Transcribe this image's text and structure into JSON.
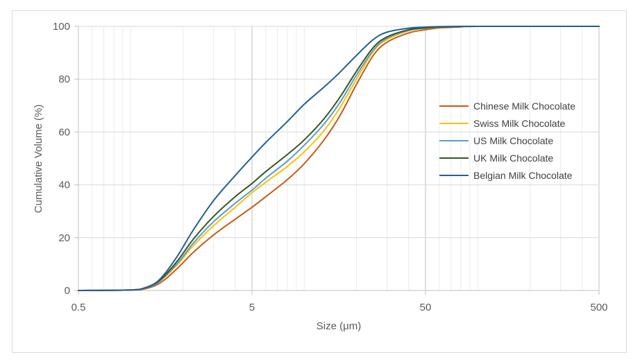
{
  "chart_data": {
    "type": "line",
    "title": "",
    "xlabel": "Size (μm)",
    "ylabel": "Cumulative Volume (%)",
    "x_scale": "log",
    "xlim": [
      0.5,
      500
    ],
    "ylim": [
      0,
      100
    ],
    "x_ticks": [
      "0.5",
      "5",
      "50",
      "500"
    ],
    "y_ticks": [
      "0",
      "20",
      "40",
      "60",
      "80",
      "100"
    ],
    "grid": true,
    "legend_position": "right",
    "series": [
      {
        "name": "Chinese Milk Chocolate",
        "color": "#c55a11",
        "x": [
          0.5,
          1.0,
          1.2,
          1.4,
          1.6,
          1.9,
          2.3,
          3.0,
          4.0,
          5.0,
          6.0,
          8.0,
          10.0,
          13.0,
          16.0,
          20.0,
          25.0,
          30.0,
          40.0,
          50.0,
          60.0,
          80.0,
          100.0,
          500.0
        ],
        "y": [
          0,
          0.2,
          0.6,
          2.0,
          4.5,
          9.0,
          14.5,
          21.0,
          27.0,
          31.5,
          35.5,
          42.0,
          48.0,
          57.0,
          66.0,
          78.0,
          89.0,
          94.0,
          97.5,
          98.7,
          99.4,
          99.8,
          100,
          100
        ]
      },
      {
        "name": "Swiss Milk Chocolate",
        "color": "#ffc000",
        "x": [
          0.5,
          1.0,
          1.2,
          1.4,
          1.6,
          1.9,
          2.3,
          3.0,
          4.0,
          5.0,
          6.0,
          8.0,
          10.0,
          13.0,
          16.0,
          20.0,
          25.0,
          30.0,
          40.0,
          50.0,
          60.0,
          80.0,
          100.0,
          500.0
        ],
        "y": [
          0,
          0.2,
          0.8,
          2.5,
          5.5,
          10.5,
          17.0,
          24.5,
          31.5,
          37.0,
          41.0,
          47.0,
          52.5,
          60.5,
          69.0,
          80.0,
          90.5,
          95.0,
          98.3,
          99.2,
          99.6,
          99.9,
          100,
          100
        ]
      },
      {
        "name": "US Milk Chocolate",
        "color": "#5b9bd5",
        "x": [
          0.5,
          1.0,
          1.2,
          1.4,
          1.6,
          1.9,
          2.3,
          3.0,
          4.0,
          5.0,
          6.0,
          8.0,
          10.0,
          13.0,
          16.0,
          20.0,
          25.0,
          30.0,
          40.0,
          50.0,
          60.0,
          80.0,
          100.0,
          500.0
        ],
        "y": [
          0,
          0.2,
          0.8,
          2.5,
          5.8,
          11.0,
          18.0,
          26.0,
          33.0,
          38.0,
          42.5,
          49.0,
          55.0,
          63.0,
          71.0,
          81.5,
          91.0,
          95.5,
          98.5,
          99.3,
          99.7,
          99.9,
          100,
          100
        ]
      },
      {
        "name": "UK Milk Chocolate",
        "color": "#375623",
        "x": [
          0.5,
          1.0,
          1.2,
          1.4,
          1.6,
          1.9,
          2.3,
          3.0,
          4.0,
          5.0,
          6.0,
          8.0,
          10.0,
          13.0,
          16.0,
          20.0,
          25.0,
          30.0,
          40.0,
          50.0,
          60.0,
          80.0,
          100.0,
          500.0
        ],
        "y": [
          0,
          0.2,
          0.9,
          2.8,
          6.2,
          12.0,
          19.5,
          28.0,
          35.5,
          40.5,
          45.0,
          51.5,
          57.0,
          65.0,
          73.0,
          83.0,
          92.0,
          96.0,
          98.7,
          99.4,
          99.7,
          99.9,
          100,
          100
        ]
      },
      {
        "name": "Belgian Milk Chocolate",
        "color": "#255e91",
        "x": [
          0.5,
          1.0,
          1.2,
          1.4,
          1.6,
          1.9,
          2.3,
          3.0,
          4.0,
          5.0,
          6.0,
          8.0,
          10.0,
          13.0,
          16.0,
          20.0,
          25.0,
          30.0,
          40.0,
          50.0,
          60.0,
          80.0,
          100.0,
          500.0
        ],
        "y": [
          0,
          0.2,
          1.0,
          3.0,
          7.0,
          14.0,
          23.0,
          34.0,
          43.5,
          50.5,
          56.0,
          64.0,
          70.5,
          77.0,
          82.5,
          89.0,
          95.0,
          97.8,
          99.3,
          99.7,
          99.9,
          100,
          100,
          100
        ]
      }
    ]
  }
}
